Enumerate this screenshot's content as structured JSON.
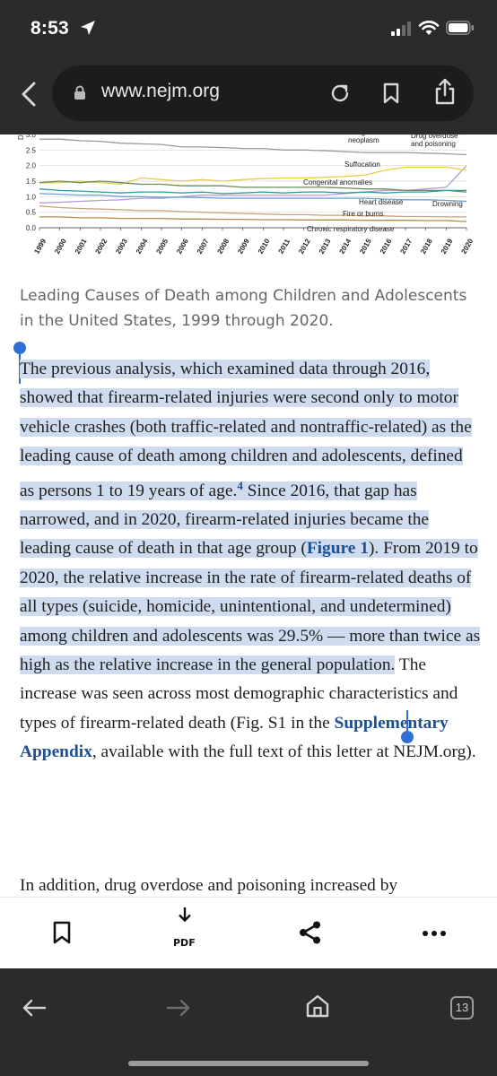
{
  "status_bar": {
    "time": "8:53"
  },
  "browser": {
    "url": "www.nejm.org",
    "open_tabs": "13"
  },
  "chart_data": {
    "type": "line",
    "x": [
      1999,
      2000,
      2001,
      2002,
      2003,
      2004,
      2005,
      2006,
      2007,
      2008,
      2009,
      2010,
      2011,
      2012,
      2013,
      2014,
      2015,
      2016,
      2017,
      2018,
      2019,
      2020
    ],
    "yticks": [
      "0.0",
      "0.5",
      "1.0",
      "1.5",
      "2.0",
      "2.5",
      "3.0"
    ],
    "ylim": [
      0,
      3.0
    ],
    "ylabel": "De",
    "series": [
      {
        "name": "Malignant neoplasm",
        "values": [
          2.85,
          2.85,
          2.8,
          2.78,
          2.72,
          2.7,
          2.68,
          2.6,
          2.6,
          2.58,
          2.55,
          2.55,
          2.5,
          2.5,
          2.48,
          2.45,
          2.42,
          2.42,
          2.42,
          2.4,
          2.38,
          2.35
        ]
      },
      {
        "name": "Drug overdose and poisoning",
        "values": [
          0.8,
          0.82,
          0.85,
          0.88,
          0.9,
          0.95,
          0.95,
          1.0,
          1.05,
          1.05,
          1.05,
          1.05,
          1.05,
          1.05,
          1.05,
          1.1,
          1.15,
          1.2,
          1.2,
          1.25,
          1.3,
          2.0
        ]
      },
      {
        "name": "Suffocation",
        "values": [
          1.45,
          1.45,
          1.5,
          1.45,
          1.4,
          1.6,
          1.55,
          1.5,
          1.55,
          1.5,
          1.55,
          1.58,
          1.6,
          1.6,
          1.62,
          1.65,
          1.7,
          1.85,
          1.95,
          1.95,
          1.95,
          1.85
        ]
      },
      {
        "name": "Congenital anomalies",
        "values": [
          1.45,
          1.5,
          1.45,
          1.5,
          1.45,
          1.4,
          1.4,
          1.35,
          1.35,
          1.35,
          1.3,
          1.3,
          1.3,
          1.3,
          1.3,
          1.28,
          1.25,
          1.25,
          1.2,
          1.2,
          1.2,
          1.15
        ]
      },
      {
        "name": "Heart disease",
        "values": [
          1.1,
          1.08,
          1.05,
          1.05,
          1.0,
          1.0,
          0.98,
          0.98,
          0.97,
          0.95,
          0.95,
          0.95,
          0.95,
          0.95,
          0.95,
          0.95,
          0.95,
          0.92,
          0.9,
          0.9,
          0.88,
          0.85
        ]
      },
      {
        "name": "Drowning",
        "values": [
          1.25,
          1.2,
          1.18,
          1.15,
          1.12,
          1.15,
          1.15,
          1.12,
          1.15,
          1.1,
          1.12,
          1.15,
          1.12,
          1.15,
          1.15,
          1.12,
          1.15,
          1.12,
          1.15,
          1.15,
          1.2,
          1.2
        ]
      },
      {
        "name": "Fire or burns",
        "values": [
          0.7,
          0.65,
          0.62,
          0.6,
          0.58,
          0.55,
          0.55,
          0.52,
          0.5,
          0.48,
          0.46,
          0.44,
          0.42,
          0.42,
          0.4,
          0.4,
          0.38,
          0.38,
          0.36,
          0.36,
          0.35,
          0.35
        ]
      },
      {
        "name": "Chronic respiratory disease",
        "values": [
          0.35,
          0.35,
          0.32,
          0.32,
          0.3,
          0.3,
          0.3,
          0.28,
          0.28,
          0.27,
          0.27,
          0.26,
          0.26,
          0.25,
          0.25,
          0.25,
          0.24,
          0.24,
          0.24,
          0.23,
          0.23,
          0.2
        ]
      }
    ],
    "series_colors": [
      "#9a9a9a",
      "#b59bd6",
      "#e6cf47",
      "#6e8a5a",
      "#6c9fd0",
      "#2d9c9e",
      "#c7a27a",
      "#b08b4a"
    ]
  },
  "article": {
    "caption": "Leading Causes of Death among Children and Adolescents in the United States, 1999 through 2020.",
    "p1_sel_a": "The previous analysis, which examined data through 2016, showed that firearm-related injuries were second only to motor vehicle crashes (both traffic-related and nontraffic-related) as the leading cause of death among children and adolescents, defined as persons 1 to 19 years of age.",
    "p1_footnote": "4",
    "p1_sel_b": " Since 2016, that gap has narrowed, and in 2020, firearm-related injuries became the leading cause of death in that age group (",
    "figure_link": "Figure 1",
    "p1_sel_c": "). From 2019 to 2020, the relative increase in the rate of firearm-related deaths of all types (suicide, homicide, unintentional, and undetermined) among children and adolescents was 29.5% — more than twice as high as the relative increase in the general population.",
    "p1_rest_a": "The increase was seen across most demographic characteristics and types of firearm-related death (Fig. S1 in the ",
    "supplementary_link": "Supplementary Appendix",
    "p1_rest_b": ", available with the full text of this letter at NEJM.org).",
    "p2_start": "In addition, drug overdose and poisoning increased by"
  },
  "toolbar": {
    "pdf_label": "PDF"
  }
}
